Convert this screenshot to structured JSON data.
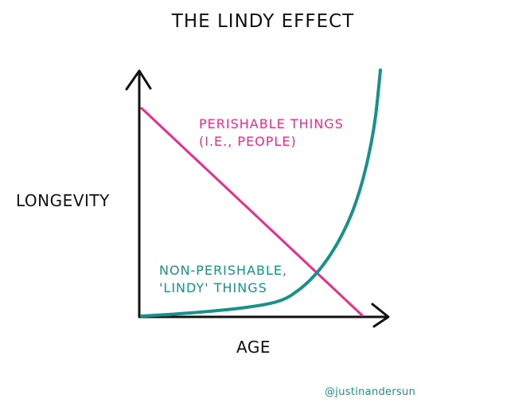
{
  "title": "THE LINDY EFFECT",
  "y_axis_label": "LONGEVITY",
  "x_axis_label": "AGE",
  "perishable_label": {
    "line1": "PERISHABLE THINGS",
    "line2": "(I.E., PEOPLE)"
  },
  "non_perishable_label": {
    "line1": "NON-PERISHABLE,",
    "line2": "'LINDY' THINGS"
  },
  "credit": "@justinandersun",
  "colors": {
    "perishable": "#ea2c8c",
    "non_perishable": "#17918c",
    "ink": "#111111",
    "credit": "#17918c"
  }
}
